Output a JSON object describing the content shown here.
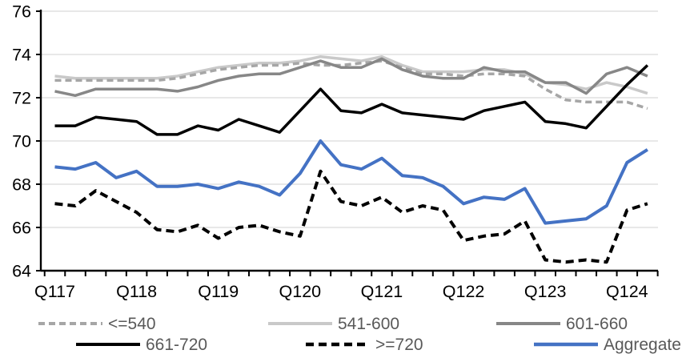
{
  "chart_data": {
    "type": "line",
    "title": "",
    "xlabel": "",
    "ylabel": "",
    "x_axis": {
      "categories": [
        "2017Q1",
        "2017Q2",
        "2017Q3",
        "2017Q4",
        "2018Q1",
        "2018Q2",
        "2018Q3",
        "2018Q4",
        "2019Q1",
        "2019Q2",
        "2019Q3",
        "2019Q4",
        "2020Q1",
        "2020Q2",
        "2020Q3",
        "2020Q4",
        "2021Q1",
        "2021Q2",
        "2021Q3",
        "2021Q4",
        "2022Q1",
        "2022Q2",
        "2022Q3",
        "2022Q4",
        "2023Q1",
        "2023Q2",
        "2023Q3",
        "2023Q4",
        "2024Q1",
        "2024Q2"
      ],
      "tick_labels": [
        "Q117",
        "Q118",
        "Q119",
        "Q120",
        "Q121",
        "Q122",
        "Q123",
        "Q124"
      ],
      "tick_label_indices": [
        0,
        4,
        8,
        12,
        16,
        20,
        24,
        28
      ]
    },
    "y_axis": {
      "min": 64,
      "max": 76,
      "ticks": [
        64,
        66,
        68,
        70,
        72,
        74,
        76
      ]
    },
    "grid": true,
    "legend_position": "bottom",
    "draw_order": [
      1,
      0,
      2,
      3,
      4,
      5
    ],
    "series": [
      {
        "name": "<=540",
        "color": "#a6a6a6",
        "dash": "8 5",
        "width": 3.5,
        "values": [
          72.8,
          72.8,
          72.8,
          72.8,
          72.8,
          72.8,
          72.9,
          73.1,
          73.3,
          73.4,
          73.5,
          73.5,
          73.6,
          73.5,
          73.5,
          73.6,
          73.7,
          73.4,
          73.1,
          73.1,
          73.0,
          73.1,
          73.1,
          73.0,
          72.4,
          71.9,
          71.8,
          71.8,
          71.8,
          71.5
        ]
      },
      {
        "name": "541-600",
        "color": "#c9c9c9",
        "dash": "",
        "width": 3.5,
        "values": [
          73.0,
          72.9,
          72.9,
          72.9,
          72.9,
          72.9,
          73.0,
          73.2,
          73.4,
          73.5,
          73.6,
          73.6,
          73.7,
          73.9,
          73.8,
          73.7,
          73.9,
          73.5,
          73.2,
          73.2,
          73.2,
          73.3,
          73.3,
          73.1,
          72.7,
          72.6,
          72.4,
          72.7,
          72.5,
          72.2
        ]
      },
      {
        "name": "601-660",
        "color": "#878787",
        "dash": "",
        "width": 3.5,
        "values": [
          72.3,
          72.1,
          72.4,
          72.4,
          72.4,
          72.4,
          72.3,
          72.5,
          72.8,
          73.0,
          73.1,
          73.1,
          73.4,
          73.7,
          73.4,
          73.4,
          73.8,
          73.3,
          73.0,
          72.9,
          72.9,
          73.4,
          73.2,
          73.2,
          72.7,
          72.7,
          72.2,
          73.1,
          73.4,
          73.0
        ]
      },
      {
        "name": "661-720",
        "color": "#000000",
        "dash": "",
        "width": 3.5,
        "values": [
          70.7,
          70.7,
          71.1,
          71.0,
          70.9,
          70.3,
          70.3,
          70.7,
          70.5,
          71.0,
          70.7,
          70.4,
          71.4,
          72.4,
          71.4,
          71.3,
          71.7,
          71.3,
          71.2,
          71.1,
          71.0,
          71.4,
          71.6,
          71.8,
          70.9,
          70.8,
          70.6,
          71.6,
          72.6,
          73.5
        ]
      },
      {
        "name": ">=720",
        "color": "#000000",
        "dash": "10 6",
        "width": 4,
        "values": [
          67.1,
          67.0,
          67.7,
          67.2,
          66.7,
          65.9,
          65.8,
          66.1,
          65.5,
          66.0,
          66.1,
          65.8,
          65.6,
          68.6,
          67.2,
          67.0,
          67.4,
          66.7,
          67.0,
          66.8,
          65.4,
          65.6,
          65.7,
          66.3,
          64.5,
          64.4,
          64.5,
          64.4,
          66.8,
          67.1
        ]
      },
      {
        "name": "Aggregate",
        "color": "#4472c4",
        "dash": "",
        "width": 4,
        "values": [
          68.8,
          68.7,
          69.0,
          68.3,
          68.6,
          67.9,
          67.9,
          68.0,
          67.8,
          68.1,
          67.9,
          67.5,
          68.5,
          70.0,
          68.9,
          68.7,
          69.2,
          68.4,
          68.3,
          67.9,
          67.1,
          67.4,
          67.3,
          67.8,
          66.2,
          66.3,
          66.4,
          67.0,
          69.0,
          69.6
        ]
      }
    ],
    "legend_rows": [
      [
        "<=540",
        "541-600",
        "601-660"
      ],
      [
        "661-720",
        ">=720",
        "Aggregate"
      ]
    ]
  },
  "style": {
    "gridline_color": "#d9d9d9",
    "axis_color": "#000000",
    "tick_label_color": "#000000",
    "legend_text_color": "#595959",
    "background": "#ffffff"
  }
}
